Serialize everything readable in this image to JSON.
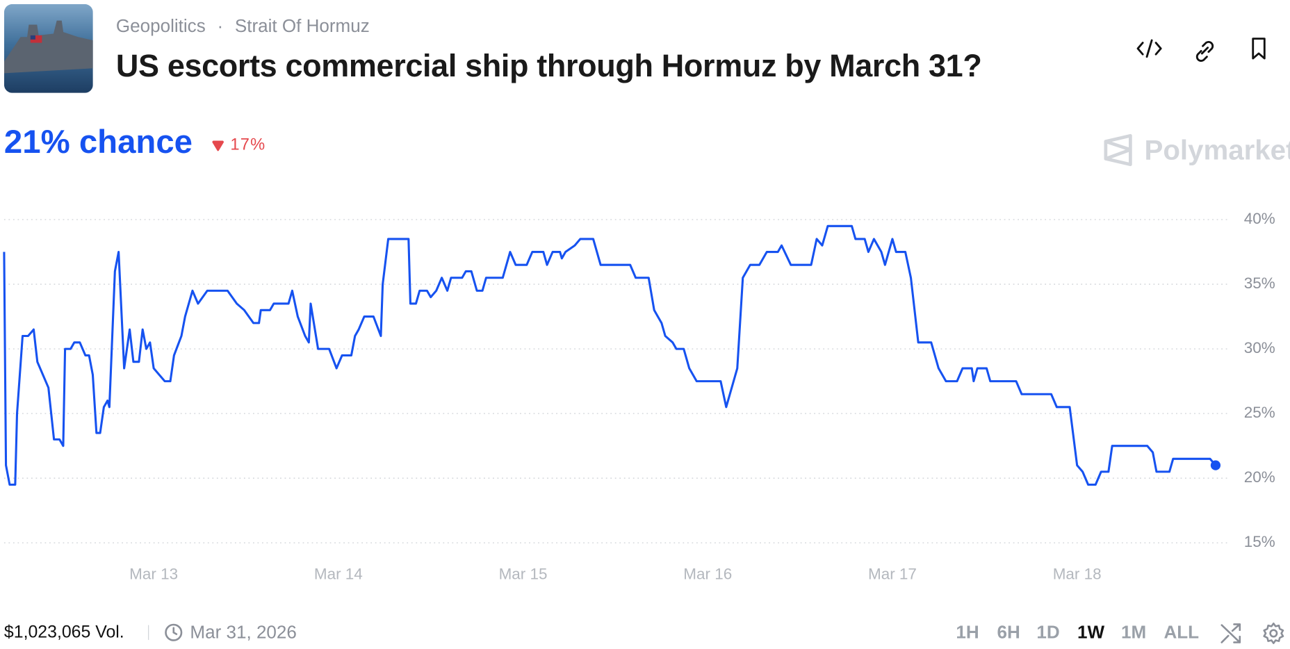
{
  "header": {
    "category": "Geopolitics",
    "subcategory": "Strait Of Hormuz",
    "title": "US escorts commercial ship through Hormuz by March 31?"
  },
  "summary": {
    "chance": "21% chance",
    "change": "17%"
  },
  "brand": "Polymarket",
  "footer": {
    "volume": "$1,023,065 Vol.",
    "end_date": "Mar 31, 2026",
    "ranges": [
      "1H",
      "6H",
      "1D",
      "1W",
      "1M",
      "ALL"
    ],
    "selected_range_index": 3
  },
  "chart_data": {
    "type": "line",
    "color": "#1652f0",
    "grid": true,
    "xlim": [
      12.19,
      18.85
    ],
    "ylim": [
      13.5,
      41.5
    ],
    "xticks": [
      {
        "value": 13,
        "label": "Mar 13"
      },
      {
        "value": 14,
        "label": "Mar 14"
      },
      {
        "value": 15,
        "label": "Mar 15"
      },
      {
        "value": 16,
        "label": "Mar 16"
      },
      {
        "value": 17,
        "label": "Mar 17"
      },
      {
        "value": 18,
        "label": "Mar 18"
      }
    ],
    "yticks": [
      {
        "value": 15,
        "label": "15%"
      },
      {
        "value": 20,
        "label": "20%"
      },
      {
        "value": 25,
        "label": "25%"
      },
      {
        "value": 30,
        "label": "30%"
      },
      {
        "value": 35,
        "label": "35%"
      },
      {
        "value": 40,
        "label": "40%"
      }
    ],
    "x": [
      12.19,
      12.2,
      12.22,
      12.25,
      12.26,
      12.29,
      12.32,
      12.35,
      12.37,
      12.43,
      12.46,
      12.49,
      12.51,
      12.52,
      12.55,
      12.57,
      12.6,
      12.63,
      12.65,
      12.67,
      12.69,
      12.71,
      12.73,
      12.75,
      12.76,
      12.79,
      12.81,
      12.84,
      12.87,
      12.89,
      12.92,
      12.94,
      12.96,
      12.98,
      13.0,
      13.03,
      13.06,
      13.09,
      13.11,
      13.15,
      13.17,
      13.21,
      13.24,
      13.29,
      13.4,
      13.45,
      13.49,
      13.54,
      13.57,
      13.58,
      13.63,
      13.65,
      13.73,
      13.75,
      13.78,
      13.82,
      13.84,
      13.85,
      13.89,
      13.92,
      13.95,
      13.99,
      14.02,
      14.07,
      14.09,
      14.11,
      14.14,
      14.19,
      14.23,
      14.24,
      14.27,
      14.38,
      14.39,
      14.42,
      14.44,
      14.48,
      14.5,
      14.53,
      14.56,
      14.59,
      14.61,
      14.67,
      14.69,
      14.72,
      14.75,
      14.78,
      14.8,
      14.89,
      14.93,
      14.96,
      15.02,
      15.05,
      15.11,
      15.13,
      15.16,
      15.2,
      15.21,
      15.23,
      15.28,
      15.31,
      15.38,
      15.42,
      15.58,
      15.61,
      15.68,
      15.71,
      15.73,
      15.75,
      15.77,
      15.81,
      15.83,
      15.87,
      15.9,
      15.94,
      16.07,
      16.1,
      16.12,
      16.16,
      16.19,
      16.23,
      16.28,
      16.32,
      16.38,
      16.4,
      16.45,
      16.56,
      16.59,
      16.62,
      16.65,
      16.78,
      16.8,
      16.85,
      16.87,
      16.9,
      16.94,
      16.96,
      17.0,
      17.02,
      17.07,
      17.1,
      17.14,
      17.21,
      17.25,
      17.29,
      17.35,
      17.38,
      17.43,
      17.44,
      17.46,
      17.51,
      17.53,
      17.67,
      17.7,
      17.86,
      17.89,
      17.96,
      18.0,
      18.03,
      18.06,
      18.1,
      18.13,
      18.17,
      18.19,
      18.38,
      18.41,
      18.43,
      18.5,
      18.52,
      18.72,
      18.75
    ],
    "values": [
      37.5,
      21,
      19.5,
      19.5,
      25,
      31,
      31,
      31.5,
      29,
      27,
      23,
      23,
      22.5,
      30,
      30,
      30.5,
      30.5,
      29.5,
      29.5,
      28,
      23.5,
      23.5,
      25.5,
      26,
      25.5,
      36,
      37.5,
      28.5,
      31.5,
      29,
      29,
      31.5,
      30,
      30.5,
      28.5,
      28,
      27.5,
      27.5,
      29.5,
      31,
      32.5,
      34.5,
      33.5,
      34.5,
      34.5,
      33.5,
      33,
      32,
      32,
      33,
      33,
      33.5,
      33.5,
      34.5,
      32.5,
      31,
      30.5,
      33.5,
      30,
      30,
      30,
      28.5,
      29.5,
      29.5,
      31,
      31.5,
      32.5,
      32.5,
      31,
      35,
      38.5,
      38.5,
      33.5,
      33.5,
      34.5,
      34.5,
      34,
      34.5,
      35.5,
      34.5,
      35.5,
      35.5,
      36,
      36,
      34.5,
      34.5,
      35.5,
      35.5,
      37.5,
      36.5,
      36.5,
      37.5,
      37.5,
      36.5,
      37.5,
      37.5,
      37,
      37.5,
      38,
      38.5,
      38.5,
      36.5,
      36.5,
      35.5,
      35.5,
      33,
      32.5,
      32,
      31,
      30.5,
      30,
      30,
      28.5,
      27.5,
      27.5,
      25.5,
      26.5,
      28.5,
      35.5,
      36.5,
      36.5,
      37.5,
      37.5,
      38,
      36.5,
      36.5,
      38.5,
      38,
      39.5,
      39.5,
      38.5,
      38.5,
      37.5,
      38.5,
      37.5,
      36.5,
      38.5,
      37.5,
      37.5,
      35.5,
      30.5,
      30.5,
      28.5,
      27.5,
      27.5,
      28.5,
      28.5,
      27.5,
      28.5,
      28.5,
      27.5,
      27.5,
      26.5,
      26.5,
      25.5,
      25.5,
      21,
      20.5,
      19.5,
      19.5,
      20.5,
      20.5,
      22.5,
      22.5,
      22,
      20.5,
      20.5,
      21.5,
      21.5,
      21
    ]
  }
}
